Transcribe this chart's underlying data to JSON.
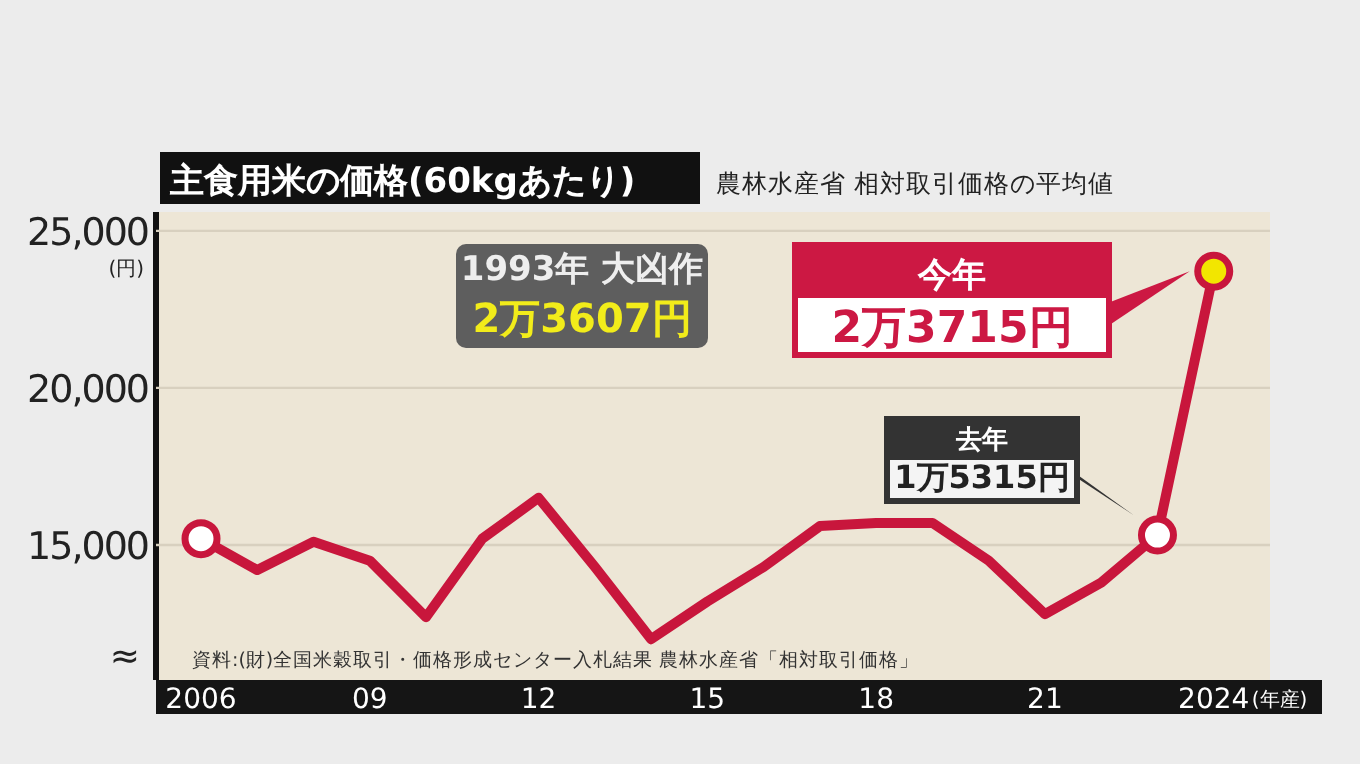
{
  "chart_data": {
    "type": "line",
    "title": "主食用米の価格(60kgあたり)",
    "subtitle": "農林水産省 相対取引価格の平均値",
    "ylabel": "(円)",
    "xlabel": "(年産)",
    "xlim": [
      2005.2,
      2025
    ],
    "xticks": [
      2006,
      {
        "value": 2009,
        "label": "09"
      },
      {
        "value": 2012,
        "label": "12"
      },
      {
        "value": 2015,
        "label": "15"
      },
      {
        "value": 2018,
        "label": "18"
      },
      {
        "value": 2021,
        "label": "21"
      },
      2024
    ],
    "ylim": [
      10700,
      25600
    ],
    "yticks": [
      {
        "value": 15000,
        "label": "15,000"
      },
      {
        "value": 20000,
        "label": "20,000"
      },
      {
        "value": 25000,
        "label": "25,000"
      }
    ],
    "grid": "y",
    "x": [
      2006,
      2007,
      2008,
      2009,
      2010,
      2011,
      2012,
      2013,
      2014,
      2015,
      2016,
      2017,
      2018,
      2019,
      2020,
      2021,
      2022,
      2023,
      2024
    ],
    "series": [
      {
        "color": "#c8163c",
        "marker": "none",
        "values": [
          15200,
          14200,
          15100,
          14500,
          12700,
          15200,
          16500,
          14300,
          12000,
          13200,
          14300,
          15600,
          15700,
          15700,
          14500,
          12800,
          13800,
          15315,
          23715
        ]
      },
      {
        "type": "scatter",
        "marker": "circle",
        "x": [
          2006,
          2023,
          2024
        ],
        "colors": [
          "#ffffff",
          "#ffffff",
          "#f2e600"
        ],
        "color": "#c8163c",
        "values": [
          15200,
          15315,
          23715
        ]
      }
    ],
    "annotations": [
      "1993年 大凶作\n2万3607円",
      "今年\n2万3715円",
      "去年\n1万5315円",
      "資料:(財)全国米穀取引・価格形成センター入札結果 農林水産省「相対取引価格」",
      "≈"
    ]
  }
}
